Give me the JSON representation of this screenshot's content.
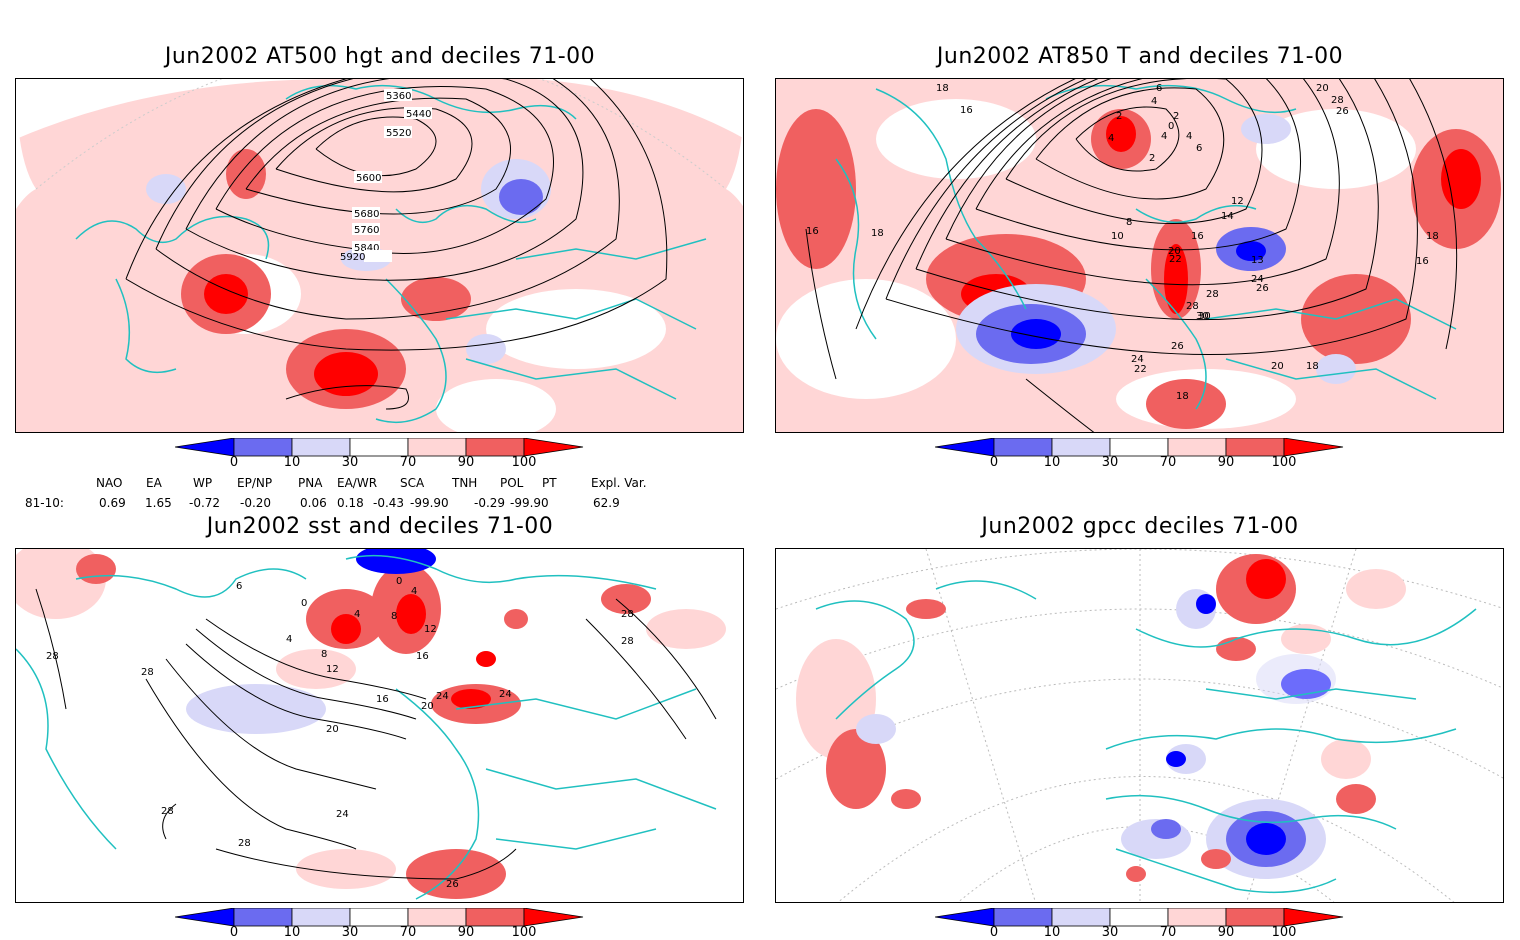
{
  "panels": [
    {
      "title": "Jun2002 AT500 hgt and deciles 71-00",
      "contour_labels": [
        "5360",
        "5440",
        "5520",
        "5600",
        "5680",
        "5760",
        "5840",
        "5920"
      ]
    },
    {
      "title": "Jun2002 AT850 T and deciles 71-00",
      "contour_labels": [
        "18",
        "16",
        "16",
        "18",
        "2",
        "4",
        "6",
        "4",
        "0",
        "2",
        "4",
        "6",
        "8",
        "10",
        "12",
        "14",
        "16",
        "20",
        "22",
        "18",
        "28",
        "30",
        "26",
        "24",
        "22",
        "20",
        "18",
        "13",
        "24",
        "26",
        "28",
        "30",
        "16",
        "18",
        "20",
        "28",
        "26",
        "4",
        "2"
      ]
    },
    {
      "title": "Jun2002 sst and deciles 71-00",
      "contour_labels": [
        "28",
        "28",
        "4",
        "8",
        "12",
        "16",
        "20",
        "24",
        "28",
        "28",
        "24",
        "28",
        "26",
        "28",
        "0",
        "0",
        "4",
        "4",
        "8",
        "12",
        "16",
        "20",
        "24",
        "6"
      ]
    },
    {
      "title": "Jun2002 gpcc deciles 71-00",
      "contour_labels": []
    }
  ],
  "colorbar": {
    "ticks": [
      "0",
      "10",
      "30",
      "70",
      "90",
      "100"
    ],
    "colors": [
      "#0000ff",
      "#6b6bf0",
      "#d8d8f8",
      "#ffffff",
      "#ffd6d6",
      "#f06060",
      "#ff0000"
    ]
  },
  "indices": {
    "headers": [
      "NAO",
      "EA",
      "WP",
      "EP/NP",
      "PNA",
      "EA/WR",
      "SCA",
      "TNH",
      "POL",
      "PT",
      "Expl. Var."
    ],
    "row_label": "81-10:",
    "values": [
      "0.69",
      "1.65",
      "-0.72",
      "-0.20",
      "0.06",
      "0.18",
      "-0.43",
      "-99.90",
      "-0.29",
      "-99.90",
      "62.9"
    ]
  }
}
